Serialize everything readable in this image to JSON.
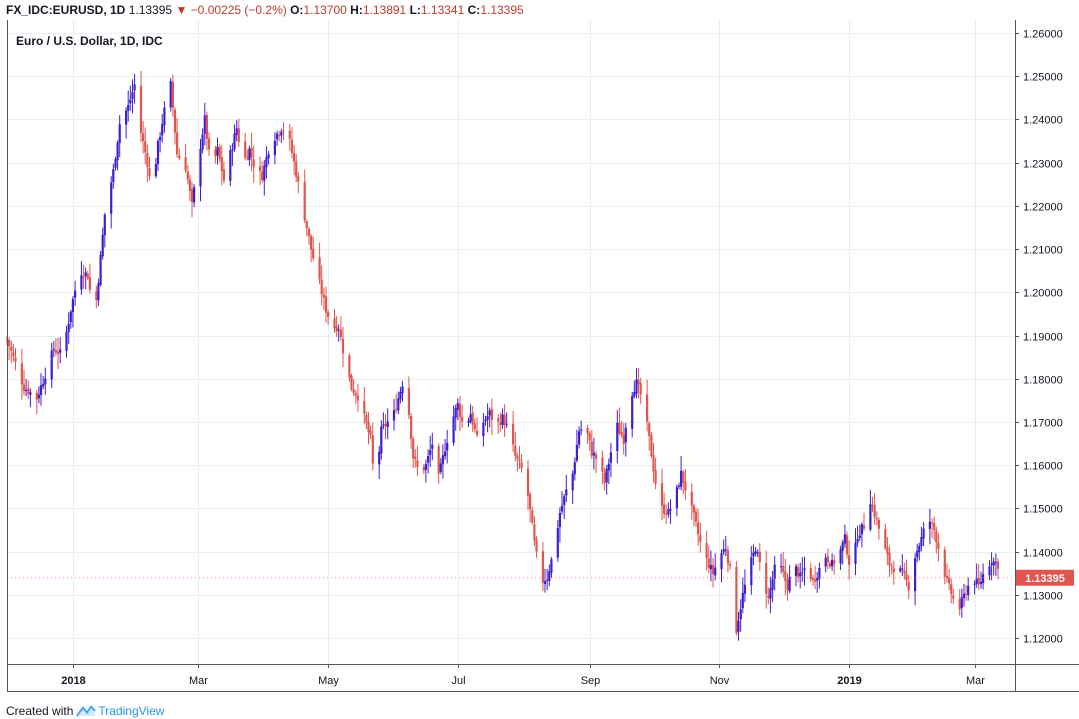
{
  "header": {
    "symbol": "FX_IDC:EURUSD, 1D",
    "last": "1.13395",
    "change_arrow": "▼",
    "change": "−0.00225 (−0.2%)",
    "open_label": "O:",
    "open": "1.13700",
    "high_label": "H:",
    "high": "1.13891",
    "low_label": "L:",
    "low": "1.13341",
    "close_label": "C:",
    "close": "1.13395"
  },
  "footer": {
    "prefix": "Created with",
    "brand": "TradingView"
  },
  "colors": {
    "up": "#3d1fd1",
    "down": "#e2554e",
    "grid": "#e8eef4",
    "axis": "#555555",
    "price_tag": "#e2554e",
    "header_red": "#c0392b",
    "brand": "#2196f3"
  },
  "chart_data": {
    "type": "candlestick",
    "title": "Euro / U.S. Dollar, 1D, IDC",
    "ylim": [
      1.114,
      1.263
    ],
    "y_ticks": [
      "1.12000",
      "1.13000",
      "1.14000",
      "1.15000",
      "1.16000",
      "1.17000",
      "1.18000",
      "1.19000",
      "1.20000",
      "1.21000",
      "1.22000",
      "1.23000",
      "1.24000",
      "1.25000",
      "1.26000"
    ],
    "x_ticks": [
      {
        "label": "2018",
        "bold": true,
        "day": 31
      },
      {
        "label": "Mar",
        "bold": false,
        "day": 90
      },
      {
        "label": "May",
        "bold": false,
        "day": 151
      },
      {
        "label": "Jul",
        "bold": false,
        "day": 212
      },
      {
        "label": "Sep",
        "bold": false,
        "day": 274
      },
      {
        "label": "Nov",
        "bold": false,
        "day": 335
      },
      {
        "label": "2019",
        "bold": true,
        "day": 396
      },
      {
        "label": "Mar",
        "bold": false,
        "day": 455
      }
    ],
    "x_range_days": [
      0,
      474
    ],
    "last_price_label": "1.13395",
    "close_path": [
      [
        0,
        1.189
      ],
      [
        8,
        1.178
      ],
      [
        14,
        1.1755
      ],
      [
        18,
        1.181
      ],
      [
        22,
        1.187
      ],
      [
        26,
        1.1855
      ],
      [
        30,
        1.196
      ],
      [
        34,
        1.205
      ],
      [
        38,
        1.204
      ],
      [
        41,
        1.1935
      ],
      [
        43,
        1.203
      ],
      [
        46,
        1.218
      ],
      [
        50,
        1.228
      ],
      [
        53,
        1.239
      ],
      [
        57,
        1.243
      ],
      [
        60,
        1.248
      ],
      [
        63,
        1.237
      ],
      [
        66,
        1.23
      ],
      [
        68,
        1.223
      ],
      [
        71,
        1.234
      ],
      [
        74,
        1.242
      ],
      [
        77,
        1.248
      ],
      [
        80,
        1.232
      ],
      [
        84,
        1.229
      ],
      [
        87,
        1.22
      ],
      [
        90,
        1.231
      ],
      [
        93,
        1.24
      ],
      [
        96,
        1.228
      ],
      [
        99,
        1.233
      ],
      [
        102,
        1.226
      ],
      [
        105,
        1.232
      ],
      [
        108,
        1.238
      ],
      [
        111,
        1.23
      ],
      [
        114,
        1.233
      ],
      [
        117,
        1.228
      ],
      [
        120,
        1.227
      ],
      [
        123,
        1.233
      ],
      [
        126,
        1.236
      ],
      [
        129,
        1.238
      ],
      [
        132,
        1.237
      ],
      [
        135,
        1.23
      ],
      [
        139,
        1.22
      ],
      [
        143,
        1.21
      ],
      [
        147,
        1.202
      ],
      [
        150,
        1.196
      ],
      [
        153,
        1.192
      ],
      [
        156,
        1.192
      ],
      [
        159,
        1.184
      ],
      [
        162,
        1.178
      ],
      [
        165,
        1.176
      ],
      [
        168,
        1.171
      ],
      [
        171,
        1.166
      ],
      [
        173,
        1.154
      ],
      [
        176,
        1.168
      ],
      [
        179,
        1.17
      ],
      [
        182,
        1.172
      ],
      [
        186,
        1.179
      ],
      [
        189,
        1.172
      ],
      [
        191,
        1.162
      ],
      [
        194,
        1.158
      ],
      [
        197,
        1.16
      ],
      [
        200,
        1.165
      ],
      [
        203,
        1.157
      ],
      [
        206,
        1.164
      ],
      [
        209,
        1.17
      ],
      [
        212,
        1.174
      ],
      [
        215,
        1.168
      ],
      [
        218,
        1.172
      ],
      [
        221,
        1.166
      ],
      [
        224,
        1.17
      ],
      [
        227,
        1.172
      ],
      [
        230,
        1.169
      ],
      [
        233,
        1.171
      ],
      [
        236,
        1.168
      ],
      [
        239,
        1.162
      ],
      [
        242,
        1.159
      ],
      [
        245,
        1.153
      ],
      [
        248,
        1.142
      ],
      [
        251,
        1.133
      ],
      [
        254,
        1.134
      ],
      [
        257,
        1.14
      ],
      [
        260,
        1.149
      ],
      [
        263,
        1.154
      ],
      [
        266,
        1.158
      ],
      [
        269,
        1.168
      ],
      [
        272,
        1.169
      ],
      [
        275,
        1.163
      ],
      [
        278,
        1.161
      ],
      [
        281,
        1.156
      ],
      [
        284,
        1.163
      ],
      [
        287,
        1.169
      ],
      [
        290,
        1.166
      ],
      [
        293,
        1.176
      ],
      [
        296,
        1.179
      ],
      [
        299,
        1.175
      ],
      [
        302,
        1.166
      ],
      [
        305,
        1.156
      ],
      [
        308,
        1.15
      ],
      [
        311,
        1.149
      ],
      [
        314,
        1.152
      ],
      [
        317,
        1.158
      ],
      [
        320,
        1.153
      ],
      [
        323,
        1.148
      ],
      [
        326,
        1.142
      ],
      [
        329,
        1.138
      ],
      [
        332,
        1.135
      ],
      [
        335,
        1.139
      ],
      [
        338,
        1.141
      ],
      [
        341,
        1.133
      ],
      [
        343,
        1.122
      ],
      [
        346,
        1.13
      ],
      [
        349,
        1.136
      ],
      [
        352,
        1.141
      ],
      [
        355,
        1.135
      ],
      [
        358,
        1.129
      ],
      [
        361,
        1.136
      ],
      [
        364,
        1.136
      ],
      [
        367,
        1.132
      ],
      [
        370,
        1.137
      ],
      [
        373,
        1.134
      ],
      [
        376,
        1.137
      ],
      [
        379,
        1.133
      ],
      [
        382,
        1.136
      ],
      [
        385,
        1.139
      ],
      [
        388,
        1.137
      ],
      [
        391,
        1.139
      ],
      [
        394,
        1.143
      ],
      [
        397,
        1.135
      ],
      [
        400,
        1.144
      ],
      [
        403,
        1.146
      ],
      [
        406,
        1.152
      ],
      [
        409,
        1.147
      ],
      [
        412,
        1.142
      ],
      [
        415,
        1.137
      ],
      [
        418,
        1.136
      ],
      [
        421,
        1.135
      ],
      [
        424,
        1.132
      ],
      [
        427,
        1.139
      ],
      [
        430,
        1.143
      ],
      [
        433,
        1.148
      ],
      [
        436,
        1.145
      ],
      [
        439,
        1.139
      ],
      [
        442,
        1.133
      ],
      [
        445,
        1.129
      ],
      [
        448,
        1.127
      ],
      [
        451,
        1.131
      ],
      [
        454,
        1.134
      ],
      [
        457,
        1.132
      ],
      [
        460,
        1.136
      ],
      [
        463,
        1.138
      ],
      [
        466,
        1.137
      ],
      [
        468,
        1.1339
      ]
    ]
  }
}
